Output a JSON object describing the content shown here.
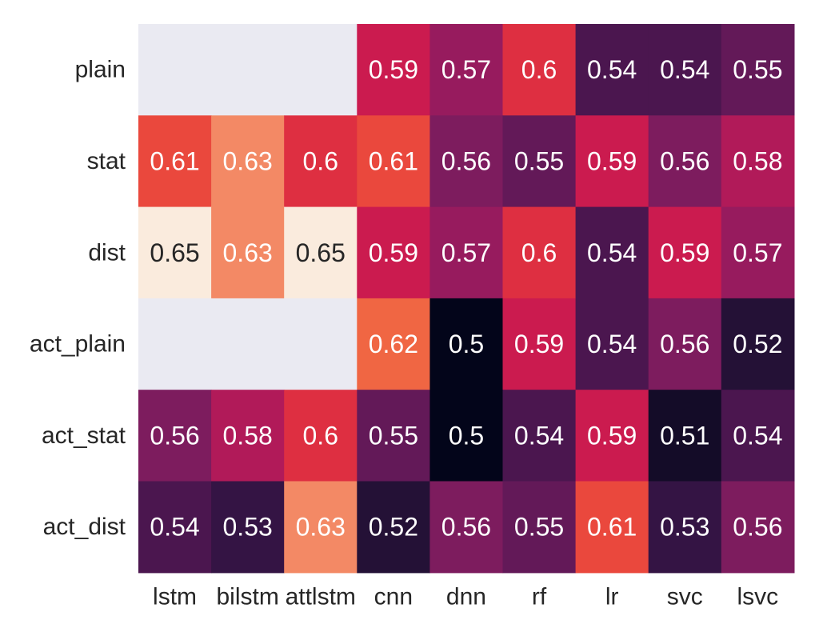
{
  "chart_data": {
    "type": "heatmap",
    "title": "",
    "xlabel": "",
    "ylabel": "",
    "x_categories": [
      "lstm",
      "bilstm",
      "attlstm",
      "cnn",
      "dnn",
      "rf",
      "lr",
      "svc",
      "lsvc"
    ],
    "y_categories": [
      "plain",
      "stat",
      "dist",
      "act_plain",
      "act_stat",
      "act_dist"
    ],
    "values": [
      [
        null,
        null,
        null,
        0.59,
        0.57,
        0.6,
        0.54,
        0.54,
        0.55
      ],
      [
        0.61,
        0.63,
        0.6,
        0.61,
        0.56,
        0.55,
        0.59,
        0.56,
        0.58
      ],
      [
        0.65,
        0.63,
        0.65,
        0.59,
        0.57,
        0.6,
        0.54,
        0.59,
        0.57
      ],
      [
        null,
        null,
        null,
        0.62,
        0.5,
        0.59,
        0.54,
        0.56,
        0.52
      ],
      [
        0.56,
        0.58,
        0.6,
        0.55,
        0.5,
        0.54,
        0.59,
        0.51,
        0.54
      ],
      [
        0.54,
        0.53,
        0.63,
        0.52,
        0.56,
        0.55,
        0.61,
        0.53,
        0.56
      ]
    ],
    "value_range": [
      0.5,
      0.65
    ],
    "colormap": "rocket",
    "missing_color": "#EAEAF2",
    "colorbar": false
  }
}
